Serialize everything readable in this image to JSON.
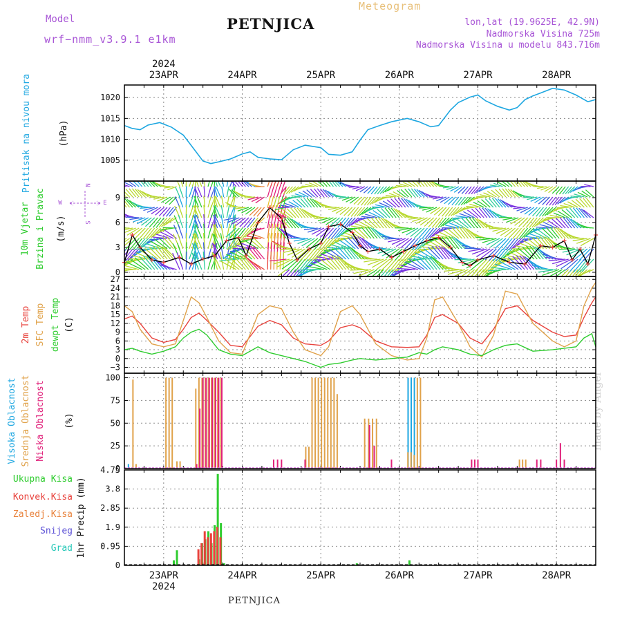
{
  "header": {
    "model_label": "Model",
    "model_version": "wrf−nmm_v3.9.1 e1km",
    "title": "PETNJICA",
    "subtitle": "Meteogram",
    "lonlat": "lon,lat (19.9625E, 42.9N)",
    "elevation": "Nadmorska Visina 725m",
    "model_elevation": "Nadmorska Visina u modelu 843.716m"
  },
  "footer": {
    "station": "PETNJICA",
    "watermark": "made by Angel"
  },
  "colors": {
    "pressure": "#1ea7e1",
    "temp2m": "#e8423c",
    "sfc": "#e0a24a",
    "dewpt": "#2ecc2e",
    "high_cloud": "#1ea7e1",
    "mid_cloud": "#e0a24a",
    "low_cloud": "#e0207a",
    "total_precip": "#2ecc2e",
    "conv_precip": "#e8423c",
    "freezing_precip": "#e8823c",
    "snow": "#5a4fd6",
    "hail": "#26c8b8",
    "accent": "#a855d6"
  },
  "chart_data": [
    {
      "type": "line",
      "panel": "pressure",
      "ylabel": [
        "Pritisak na nivou mora",
        "(hPa)"
      ],
      "yticks": [
        "1005",
        "1010",
        "1015",
        "1020"
      ],
      "ylim": [
        1000,
        1023
      ],
      "xlim": [
        0,
        6
      ],
      "x_unit": "days from 2024-04-22 12:00",
      "grid": true,
      "series": [
        {
          "x": [
            0,
            0.1,
            0.2,
            0.3,
            0.45,
            0.6,
            0.75,
            0.9,
            1.0,
            1.1,
            1.2,
            1.35,
            1.5,
            1.6,
            1.7,
            1.85,
            2.0,
            2.15,
            2.3,
            2.5,
            2.6,
            2.75,
            2.9,
            3.0,
            3.1,
            3.25,
            3.4,
            3.6,
            3.75,
            3.9,
            4.0,
            4.15,
            4.25,
            4.4,
            4.5,
            4.6,
            4.75,
            4.9,
            5.0,
            5.1,
            5.2,
            5.3,
            5.45,
            5.6,
            5.75,
            5.9,
            6.0
          ],
          "y": [
            1013.3,
            1012.6,
            1012.3,
            1013.4,
            1014.0,
            1012.9,
            1011.0,
            1007.3,
            1004.8,
            1004.2,
            1004.6,
            1005.3,
            1006.5,
            1007.0,
            1005.7,
            1005.3,
            1005.1,
            1007.5,
            1008.6,
            1008.0,
            1006.4,
            1006.2,
            1007.0,
            1009.8,
            1012.3,
            1013.3,
            1014.2,
            1015.0,
            1014.2,
            1013.0,
            1013.3,
            1017.0,
            1018.8,
            1020.1,
            1020.6,
            1019.2,
            1017.9,
            1017.0,
            1017.6,
            1019.5,
            1020.4,
            1021.1,
            1022.2,
            1021.8,
            1020.6,
            1019.0,
            1019.5
          ]
        }
      ]
    },
    {
      "type": "scatter",
      "panel": "wind",
      "ylabel": [
        "10m Vjetar",
        "Brzina i Pravac",
        "(m/s)"
      ],
      "compass": [
        "N",
        "E",
        "S",
        "W"
      ],
      "yticks": [
        "0",
        "3",
        "6",
        "9"
      ],
      "ylim": [
        -0.5,
        11
      ],
      "xlim": [
        0,
        6
      ],
      "grid": true,
      "series": [
        {
          "name": "speed",
          "x": [
            0,
            0.1,
            0.2,
            0.35,
            0.5,
            0.7,
            0.85,
            1.0,
            1.15,
            1.3,
            1.45,
            1.55,
            1.7,
            1.85,
            2.0,
            2.1,
            2.2,
            2.35,
            2.5,
            2.6,
            2.75,
            2.9,
            3.0,
            3.1,
            3.25,
            3.4,
            3.55,
            3.7,
            3.85,
            4.0,
            4.15,
            4.3,
            4.4,
            4.5,
            4.7,
            4.9,
            5.1,
            5.3,
            5.45,
            5.6,
            5.7,
            5.8,
            5.9,
            6.0
          ],
          "y": [
            1.2,
            4.5,
            3.0,
            1.5,
            1.2,
            1.8,
            1.0,
            1.6,
            2.0,
            3.8,
            4.2,
            2.0,
            6.0,
            7.8,
            6.5,
            3.5,
            1.5,
            2.8,
            3.5,
            5.5,
            5.8,
            4.8,
            3.2,
            2.5,
            2.8,
            1.8,
            2.5,
            3.2,
            3.8,
            4.2,
            3.0,
            1.2,
            0.8,
            1.5,
            2.0,
            1.2,
            1.0,
            3.2,
            3.0,
            3.8,
            1.5,
            2.8,
            1.0,
            4.5
          ]
        }
      ]
    },
    {
      "type": "line",
      "panel": "temperature",
      "ylabel": [
        "2m Temp",
        "SFC Temp",
        "dewpt Temp",
        "(C)"
      ],
      "yticks": [
        "−3",
        "0",
        "3",
        "6",
        "9",
        "12",
        "15",
        "18",
        "21",
        "24",
        "27"
      ],
      "ylim": [
        -5,
        28
      ],
      "xlim": [
        0,
        6
      ],
      "grid": true,
      "series": [
        {
          "name": "2m Temp",
          "x": [
            0,
            0.1,
            0.2,
            0.35,
            0.5,
            0.65,
            0.75,
            0.85,
            0.95,
            1.05,
            1.2,
            1.35,
            1.5,
            1.7,
            1.85,
            2.0,
            2.15,
            2.3,
            2.5,
            2.6,
            2.75,
            2.9,
            3.0,
            3.2,
            3.4,
            3.6,
            3.75,
            3.85,
            3.95,
            4.05,
            4.25,
            4.4,
            4.55,
            4.7,
            4.85,
            5.0,
            5.2,
            5.45,
            5.6,
            5.75,
            5.85,
            5.95,
            6.0
          ],
          "y": [
            13.5,
            14.5,
            12,
            7,
            5.5,
            6.5,
            10,
            14,
            15.5,
            13,
            9,
            4.5,
            4,
            11,
            13,
            11.5,
            7,
            5,
            4.5,
            6,
            10.5,
            11.5,
            10.5,
            6,
            4,
            3.8,
            4,
            8,
            14,
            15,
            12,
            7,
            5,
            10,
            17,
            18,
            13,
            9,
            7.5,
            8,
            14,
            19,
            21
          ]
        },
        {
          "name": "SFC Temp",
          "x": [
            0,
            0.1,
            0.2,
            0.35,
            0.5,
            0.65,
            0.75,
            0.85,
            0.95,
            1.05,
            1.2,
            1.35,
            1.5,
            1.7,
            1.85,
            2.0,
            2.15,
            2.3,
            2.5,
            2.6,
            2.75,
            2.9,
            3.0,
            3.2,
            3.4,
            3.6,
            3.75,
            3.85,
            3.95,
            4.05,
            4.25,
            4.4,
            4.55,
            4.7,
            4.85,
            5.0,
            5.2,
            5.45,
            5.6,
            5.75,
            5.85,
            5.95,
            6.0
          ],
          "y": [
            18,
            16,
            10,
            5,
            4,
            5,
            13,
            21,
            19,
            14,
            6,
            2,
            1.5,
            15,
            18,
            17,
            9,
            3,
            1,
            4,
            16,
            18,
            15,
            5,
            1,
            -0.5,
            0,
            7,
            20,
            21,
            12,
            4,
            0.5,
            8,
            23,
            22,
            12,
            6,
            4,
            6,
            18,
            24,
            26
          ]
        },
        {
          "name": "dewpt Temp",
          "x": [
            0,
            0.1,
            0.2,
            0.35,
            0.5,
            0.65,
            0.75,
            0.85,
            0.95,
            1.05,
            1.2,
            1.35,
            1.5,
            1.7,
            1.85,
            2.0,
            2.15,
            2.3,
            2.5,
            2.6,
            2.75,
            2.9,
            3.0,
            3.2,
            3.4,
            3.6,
            3.75,
            3.85,
            3.95,
            4.05,
            4.25,
            4.4,
            4.55,
            4.7,
            4.85,
            5.0,
            5.2,
            5.45,
            5.6,
            5.75,
            5.85,
            5.95,
            6.0
          ],
          "y": [
            3,
            3.5,
            2.5,
            1.5,
            2.5,
            4,
            7,
            9,
            10,
            8,
            3,
            1.5,
            1,
            4,
            2,
            1,
            0,
            -1,
            -3,
            -2,
            -1.5,
            -0.5,
            0,
            -0.5,
            0,
            0.5,
            2,
            1.5,
            3,
            4,
            3,
            1.5,
            1,
            3,
            4.5,
            5,
            2.5,
            3,
            3.5,
            4,
            7,
            8.5,
            4
          ]
        }
      ]
    },
    {
      "type": "bar",
      "panel": "cloud",
      "ylabel": [
        "Visoka Oblacnost",
        "Srednja Oblacnost",
        "Niska Oblacnost",
        "(%)"
      ],
      "yticks": [
        "0",
        "25",
        "50",
        "75",
        "100"
      ],
      "ylim": [
        0,
        105
      ],
      "xlim": [
        0,
        6
      ],
      "grid": true,
      "series": [
        {
          "name": "Visoka Oblacnost",
          "x": [
            0.06,
            3.62,
            3.66,
            3.7
          ],
          "values": [
            5,
            100,
            100,
            100
          ]
        },
        {
          "name": "Srednja Oblacnost",
          "x": [
            0.1,
            0.14,
            0.52,
            0.56,
            0.6,
            0.66,
            0.7,
            0.9,
            0.94,
            0.98,
            1.02,
            1.06,
            1.1,
            1.14,
            1.18,
            1.22,
            2.3,
            2.34,
            2.38,
            2.42,
            2.46,
            2.5,
            2.54,
            2.58,
            2.62,
            2.66,
            2.7,
            3.05,
            3.1,
            3.15,
            3.2,
            3.6,
            3.64,
            3.68,
            3.72,
            3.76,
            5.02,
            5.06,
            5.1
          ],
          "values": [
            98,
            5,
            100,
            100,
            100,
            8,
            8,
            88,
            100,
            100,
            100,
            100,
            100,
            100,
            100,
            100,
            24,
            24,
            100,
            100,
            100,
            100,
            100,
            100,
            100,
            100,
            82,
            55,
            55,
            55,
            55,
            18,
            18,
            15,
            100,
            100,
            10,
            10,
            10
          ]
        },
        {
          "name": "Niska Oblacnost",
          "x": [
            0.92,
            0.96,
            1.0,
            1.04,
            1.08,
            1.12,
            1.16,
            1.2,
            1.24,
            1.9,
            1.95,
            2.0,
            2.3,
            3.12,
            3.18,
            3.4,
            4.42,
            4.46,
            4.5,
            5.25,
            5.3,
            5.5,
            5.55,
            5.6
          ],
          "values": [
            5,
            66,
            100,
            100,
            100,
            100,
            100,
            100,
            100,
            10,
            10,
            10,
            10,
            48,
            25,
            10,
            10,
            10,
            10,
            10,
            10,
            10,
            28,
            10
          ]
        }
      ]
    },
    {
      "type": "bar",
      "panel": "precipitation",
      "ylabel": [
        "Ukupna Kisa",
        "Konvek.Kisa",
        "Zaledj.Kisa",
        "Snijeg",
        "Grad",
        "1hr Precip (mm)"
      ],
      "yticks": [
        "0",
        "0.95",
        "1.9",
        "2.85",
        "3.8",
        "4.75"
      ],
      "ylim": [
        0,
        4.75
      ],
      "xlim": [
        0,
        6
      ],
      "grid": true,
      "xticks": [
        "23APR",
        "24APR",
        "25APR",
        "26APR",
        "27APR",
        "28APR"
      ],
      "xtick_year": "2024",
      "series": [
        {
          "name": "Ukupna Kisa",
          "x": [
            0.62,
            0.66,
            0.94,
            0.98,
            1.02,
            1.06,
            1.1,
            1.14,
            1.18,
            1.22,
            1.26,
            2.95,
            3.62
          ],
          "values": [
            0.25,
            0.75,
            0.3,
            1.1,
            1.3,
            1.7,
            1.1,
            2.0,
            4.55,
            2.1,
            0.1,
            0.1,
            0.25
          ]
        },
        {
          "name": "Konvek.Kisa",
          "x": [
            0.96,
            1.0,
            1.04,
            1.08,
            1.12,
            1.16,
            1.2,
            1.24
          ],
          "values": [
            0.8,
            1.1,
            1.7,
            1.4,
            1.6,
            1.7,
            1.9,
            1.4
          ]
        }
      ]
    }
  ]
}
